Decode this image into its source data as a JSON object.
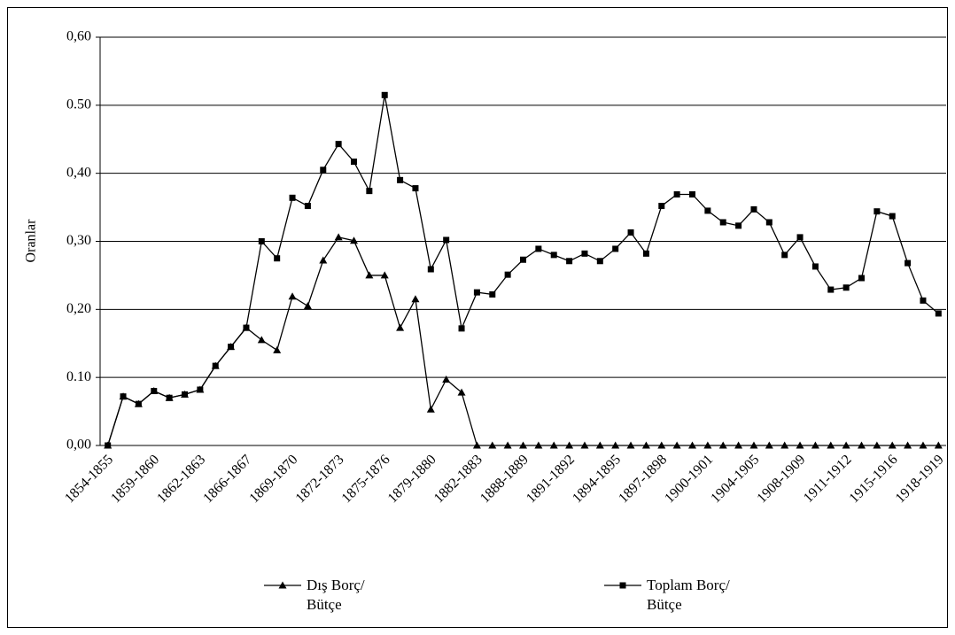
{
  "chart_data": {
    "type": "line",
    "y_label": "Oranlar",
    "categories": [
      "1854-1855",
      null,
      null,
      "1859-1860",
      null,
      null,
      "1862-1863",
      null,
      null,
      "1866-1867",
      null,
      null,
      "1869-1870",
      null,
      null,
      "1872-1873",
      null,
      null,
      "1875-1876",
      null,
      null,
      "1879-1880",
      null,
      null,
      "1882-1883",
      null,
      null,
      "1888-1889",
      null,
      null,
      "1891-1892",
      null,
      null,
      "1894-1895",
      null,
      null,
      "1897-1898",
      null,
      null,
      "1900-1901",
      null,
      null,
      "1904-1905",
      null,
      null,
      "1908-1909",
      null,
      null,
      "1911-1912",
      null,
      null,
      "1915-1916",
      null,
      null,
      "1918-1919"
    ],
    "series": [
      {
        "name": "Dış Borç/ Bütçe",
        "color": "#000000",
        "marker": "triangle",
        "values": [
          0,
          0.072,
          0.061,
          0.08,
          0.07,
          0.075,
          0.082,
          0.117,
          0.145,
          0.173,
          0.155,
          0.14,
          0.219,
          0.205,
          0.272,
          0.306,
          0.301,
          0.25,
          0.25,
          0.173,
          0.215,
          0.053,
          0.097,
          0.078,
          0,
          0,
          0,
          0,
          0,
          0,
          0,
          0,
          0,
          0,
          0,
          0,
          0,
          0,
          0,
          0,
          0,
          0,
          0,
          0,
          0,
          0,
          0,
          0,
          0,
          0,
          0,
          0,
          0,
          0,
          0
        ]
      },
      {
        "name": "Toplam Borç/ Bütçe",
        "color": "#000000",
        "marker": "square",
        "values": [
          0,
          0.072,
          0.061,
          0.08,
          0.07,
          0.075,
          0.082,
          0.117,
          0.145,
          0.173,
          0.3,
          0.275,
          0.364,
          0.352,
          0.405,
          0.443,
          0.417,
          0.374,
          0.515,
          0.39,
          0.378,
          0.259,
          0.302,
          0.172,
          0.225,
          0.222,
          0.251,
          0.273,
          0.289,
          0.28,
          0.271,
          0.282,
          0.271,
          0.289,
          0.313,
          0.282,
          0.352,
          0.369,
          0.369,
          0.345,
          0.328,
          0.323,
          0.347,
          0.328,
          0.28,
          0.306,
          0.263,
          0.229,
          0.232,
          0.246,
          0.344,
          0.337,
          0.268,
          0.213,
          0.194
        ]
      }
    ],
    "ylim": [
      0,
      0.6
    ],
    "yticks": [
      {
        "value": 0,
        "label": "0,00"
      },
      {
        "value": 0.1,
        "label": "0.10"
      },
      {
        "value": 0.2,
        "label": "0,20"
      },
      {
        "value": 0.3,
        "label": "0,30"
      },
      {
        "value": 0.4,
        "label": "0,40"
      },
      {
        "value": 0.5,
        "label": "0.50"
      },
      {
        "value": 0.6,
        "label": "0,60"
      }
    ],
    "grid": true,
    "legend": "bottom"
  }
}
